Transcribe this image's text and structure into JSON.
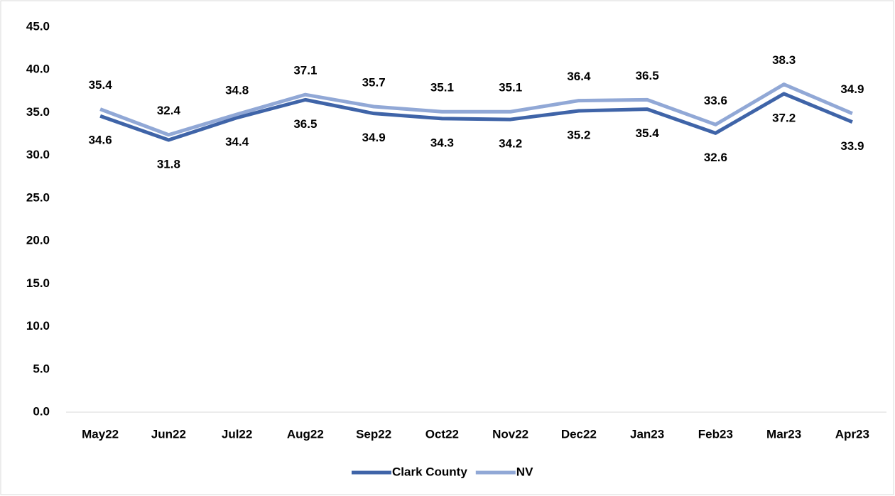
{
  "chart_data": {
    "type": "line",
    "categories": [
      "May22",
      "Jun22",
      "Jul22",
      "Aug22",
      "Sep22",
      "Oct22",
      "Nov22",
      "Dec22",
      "Jan23",
      "Feb23",
      "Mar23",
      "Apr23"
    ],
    "series": [
      {
        "name": "Clark County",
        "color": "#3f64a8",
        "values": [
          34.6,
          31.8,
          34.4,
          36.5,
          34.9,
          34.3,
          34.2,
          35.2,
          35.4,
          32.6,
          37.2,
          33.9
        ]
      },
      {
        "name": "NV",
        "color": "#91a8d6",
        "values": [
          35.4,
          32.4,
          34.8,
          37.1,
          35.7,
          35.1,
          35.1,
          36.4,
          36.5,
          33.6,
          38.3,
          34.9
        ]
      }
    ],
    "ylim": [
      0,
      45
    ],
    "yticks": [
      {
        "value": 0,
        "label": "0.0"
      },
      {
        "value": 5,
        "label": "5.0"
      },
      {
        "value": 10,
        "label": "10.0"
      },
      {
        "value": 15,
        "label": "15.0"
      },
      {
        "value": 20,
        "label": "20.0"
      },
      {
        "value": 25,
        "label": "25.0"
      },
      {
        "value": 30,
        "label": "30.0"
      },
      {
        "value": 35,
        "label": "35.0"
      },
      {
        "value": 40,
        "label": "40.0"
      },
      {
        "value": 45,
        "label": "45.0"
      }
    ],
    "grid": false,
    "legend": "bottom"
  }
}
